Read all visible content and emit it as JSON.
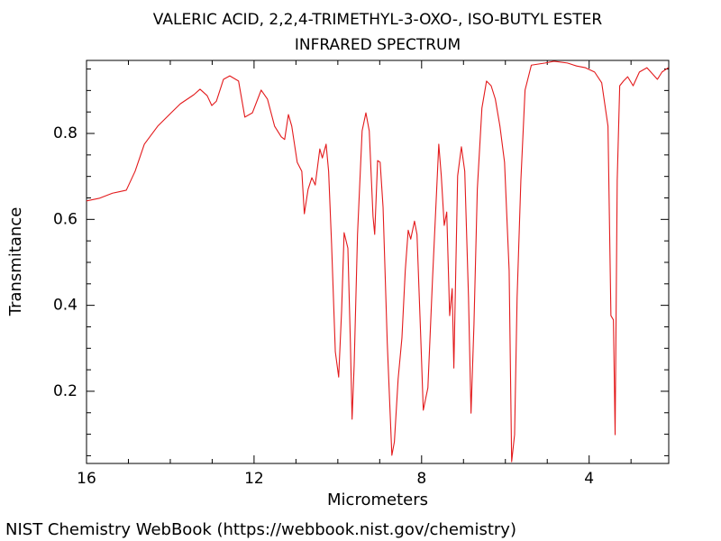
{
  "chart_data": {
    "type": "line",
    "title": "VALERIC ACID, 2,2,4-TRIMETHYL-3-OXO-, ISO-BUTYL ESTER",
    "subtitle": "INFRARED SPECTRUM",
    "xlabel": "Micrometers",
    "ylabel": "Transmitance",
    "source": "NIST Chemistry WebBook (https://webbook.nist.gov/chemistry)",
    "color": "#e31a1c",
    "xlim": [
      16,
      2.1
    ],
    "ylim": [
      0.032,
      0.97
    ],
    "xticks": [
      16,
      12,
      8,
      4
    ],
    "yticks": [
      0.2,
      0.4,
      0.6,
      0.8
    ],
    "xminorticks": [
      15,
      14,
      13,
      11,
      10,
      9,
      7,
      6,
      5,
      3
    ],
    "yminorticks": [
      0.05,
      0.1,
      0.15,
      0.25,
      0.3,
      0.35,
      0.45,
      0.5,
      0.55,
      0.65,
      0.7,
      0.75,
      0.85,
      0.9,
      0.95
    ],
    "x": [
      16.0,
      15.7,
      15.38,
      15.05,
      14.84,
      14.62,
      14.3,
      13.98,
      13.76,
      13.44,
      13.29,
      13.12,
      13.01,
      12.9,
      12.73,
      12.58,
      12.37,
      12.22,
      12.04,
      11.83,
      11.68,
      11.51,
      11.35,
      11.27,
      11.18,
      11.1,
      10.97,
      10.86,
      10.8,
      10.71,
      10.62,
      10.54,
      10.43,
      10.37,
      10.28,
      10.22,
      10.15,
      10.06,
      9.98,
      9.91,
      9.85,
      9.76,
      9.7,
      9.66,
      9.61,
      9.53,
      9.42,
      9.33,
      9.25,
      9.16,
      9.12,
      9.05,
      8.99,
      8.92,
      8.82,
      8.71,
      8.65,
      8.56,
      8.47,
      8.39,
      8.32,
      8.26,
      8.17,
      8.11,
      8.02,
      7.96,
      7.85,
      7.74,
      7.66,
      7.59,
      7.53,
      7.46,
      7.4,
      7.33,
      7.27,
      7.23,
      7.14,
      7.05,
      6.97,
      6.88,
      6.82,
      6.75,
      6.67,
      6.56,
      6.45,
      6.34,
      6.24,
      6.13,
      6.02,
      5.91,
      5.85,
      5.78,
      5.72,
      5.63,
      5.53,
      5.38,
      5.05,
      4.84,
      4.52,
      4.3,
      4.09,
      3.87,
      3.7,
      3.55,
      3.48,
      3.42,
      3.38,
      3.33,
      3.27,
      3.18,
      3.08,
      2.95,
      2.8,
      2.62,
      2.37,
      2.26,
      2.11
    ],
    "values": [
      0.643,
      0.649,
      0.661,
      0.668,
      0.712,
      0.775,
      0.817,
      0.848,
      0.869,
      0.89,
      0.903,
      0.888,
      0.865,
      0.875,
      0.926,
      0.934,
      0.922,
      0.838,
      0.848,
      0.901,
      0.88,
      0.817,
      0.792,
      0.786,
      0.844,
      0.817,
      0.733,
      0.712,
      0.613,
      0.67,
      0.697,
      0.68,
      0.764,
      0.743,
      0.775,
      0.712,
      0.544,
      0.292,
      0.233,
      0.387,
      0.569,
      0.533,
      0.313,
      0.135,
      0.261,
      0.565,
      0.806,
      0.848,
      0.806,
      0.607,
      0.565,
      0.737,
      0.733,
      0.628,
      0.313,
      0.051,
      0.082,
      0.229,
      0.324,
      0.481,
      0.575,
      0.554,
      0.596,
      0.565,
      0.324,
      0.156,
      0.208,
      0.46,
      0.628,
      0.775,
      0.701,
      0.586,
      0.617,
      0.376,
      0.439,
      0.254,
      0.701,
      0.769,
      0.712,
      0.418,
      0.149,
      0.355,
      0.67,
      0.859,
      0.922,
      0.911,
      0.88,
      0.817,
      0.733,
      0.481,
      0.036,
      0.099,
      0.418,
      0.691,
      0.901,
      0.959,
      0.964,
      0.968,
      0.964,
      0.957,
      0.953,
      0.943,
      0.918,
      0.817,
      0.376,
      0.366,
      0.099,
      0.691,
      0.911,
      0.922,
      0.932,
      0.911,
      0.943,
      0.953,
      0.926,
      0.943,
      0.953
    ]
  }
}
